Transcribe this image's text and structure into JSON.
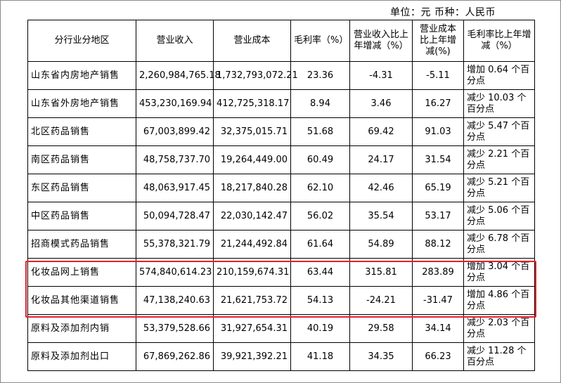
{
  "unit_label": "单位：元  币种：人民币",
  "headers": [
    "分行业分地区",
    "营业收入",
    "营业成本",
    "毛利率（%）",
    "营业收入比上年增减（%）",
    "营业成本比上年增减(%)",
    "毛利率比上年增减（%）"
  ],
  "rows": [
    {
      "name": "山东省内房地产销售",
      "revenue": "2,260,984,765.18",
      "cost": "1,732,793,072.21",
      "margin": "23.36",
      "rev_chg": "-4.31",
      "cost_chg": "-5.11",
      "margin_chg": "增加 0.64 个百分点"
    },
    {
      "name": "山东省外房地产销售",
      "revenue": "453,230,169.94",
      "cost": "412,725,318.17",
      "margin": "8.94",
      "rev_chg": "3.46",
      "cost_chg": "16.27",
      "margin_chg": "减少 10.03 个百分点"
    },
    {
      "name": "北区药品销售",
      "revenue": "67,003,899.42",
      "cost": "32,375,015.71",
      "margin": "51.68",
      "rev_chg": "69.42",
      "cost_chg": "91.03",
      "margin_chg": "减少 5.47 个百分点"
    },
    {
      "name": "南区药品销售",
      "revenue": "48,758,737.70",
      "cost": "19,264,449.00",
      "margin": "60.49",
      "rev_chg": "24.17",
      "cost_chg": "31.54",
      "margin_chg": "减少 2.21 个百分点"
    },
    {
      "name": "东区药品销售",
      "revenue": "48,063,917.45",
      "cost": "18,217,840.28",
      "margin": "62.10",
      "rev_chg": "42.46",
      "cost_chg": "65.19",
      "margin_chg": "减少 5.21 个百分点"
    },
    {
      "name": "中区药品销售",
      "revenue": "50,094,728.47",
      "cost": "22,030,142.47",
      "margin": "56.02",
      "rev_chg": "35.54",
      "cost_chg": "53.17",
      "margin_chg": "减少 5.06 个百分点"
    },
    {
      "name": "招商模式药品销售",
      "revenue": "55,378,321.79",
      "cost": "21,244,492.84",
      "margin": "61.64",
      "rev_chg": "54.89",
      "cost_chg": "88.12",
      "margin_chg": "减少 6.78 个百分点"
    },
    {
      "name": "化妆品网上销售",
      "revenue": "574,840,614.23",
      "cost": "210,159,674.31",
      "margin": "63.44",
      "rev_chg": "315.81",
      "cost_chg": "283.89",
      "margin_chg": "增加 3.04 个百分点"
    },
    {
      "name": "化妆品其他渠道销售",
      "revenue": "47,138,240.63",
      "cost": "21,621,753.72",
      "margin": "54.13",
      "rev_chg": "-24.21",
      "cost_chg": "-31.47",
      "margin_chg": "增加 4.86 个百分点"
    },
    {
      "name": "原料及添加剂内销",
      "revenue": "53,379,528.66",
      "cost": "31,927,654.31",
      "margin": "40.19",
      "rev_chg": "29.58",
      "cost_chg": "34.14",
      "margin_chg": "减少 2.03 个百分点"
    },
    {
      "name": "原料及添加剂出口",
      "revenue": "67,869,262.86",
      "cost": "39,921,392.21",
      "margin": "41.18",
      "rev_chg": "34.35",
      "cost_chg": "66.23",
      "margin_chg": "减少 11.28 个百分点"
    }
  ],
  "highlight_color": "#e4212b"
}
